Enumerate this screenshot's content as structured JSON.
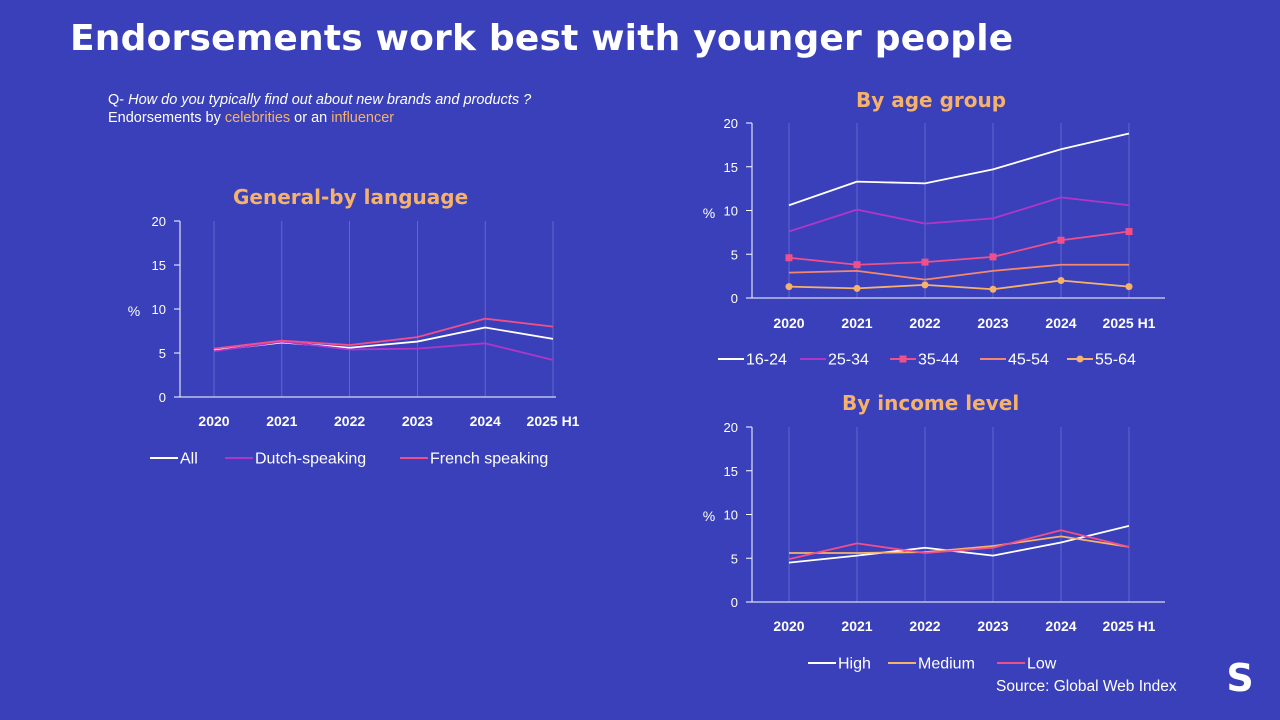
{
  "header": {
    "title": "Endorsements work best with younger people"
  },
  "question": {
    "prefix": "Q- ",
    "text": "How do you typically find out about new brands and products ?",
    "line2_start": "Endorsements by ",
    "highlight1": "celebrities",
    "middle": " or an ",
    "highlight2": "influencer"
  },
  "footer": {
    "source": "Source: Global Web Index",
    "logo_letter": "S"
  },
  "colors": {
    "background": "#3a40b9",
    "accent": "#f6b26b",
    "white": "#ffffff",
    "purple": "#b036c8",
    "pink": "#ef4f8a",
    "salmon": "#f4876c",
    "orange": "#f6b26b"
  },
  "chart_data": [
    {
      "id": "language",
      "type": "line",
      "title": "General-by language",
      "ylabel": "%",
      "ylim": [
        0,
        20
      ],
      "yticks": [
        0,
        5,
        10,
        15,
        20
      ],
      "categories": [
        "2020",
        "2021",
        "2022",
        "2023",
        "2024",
        "2025 H1"
      ],
      "series": [
        {
          "name": "All",
          "color": "#ffffff",
          "marker": "none",
          "values": [
            5.3,
            6.2,
            5.6,
            6.3,
            7.9,
            6.6
          ]
        },
        {
          "name": "Dutch-speaking",
          "color": "#b036c8",
          "marker": "none",
          "values": [
            5.2,
            6.3,
            5.4,
            5.5,
            6.1,
            4.2
          ]
        },
        {
          "name": "French speaking",
          "color": "#ef4f8a",
          "marker": "none",
          "values": [
            5.5,
            6.4,
            5.9,
            6.8,
            8.9,
            8.0
          ]
        }
      ]
    },
    {
      "id": "age",
      "type": "line",
      "title": "By age group",
      "ylabel": "%",
      "ylim": [
        0,
        20
      ],
      "yticks": [
        0,
        5,
        10,
        15,
        20
      ],
      "categories": [
        "2020",
        "2021",
        "2022",
        "2023",
        "2024",
        "2025 H1"
      ],
      "series": [
        {
          "name": "16-24",
          "color": "#ffffff",
          "marker": "none",
          "values": [
            10.6,
            13.3,
            13.1,
            14.7,
            17.0,
            18.8
          ]
        },
        {
          "name": "25-34",
          "color": "#b036c8",
          "marker": "none",
          "values": [
            7.6,
            10.1,
            8.5,
            9.1,
            11.5,
            10.6
          ]
        },
        {
          "name": "35-44",
          "color": "#ef4f8a",
          "marker": "square",
          "values": [
            4.6,
            3.8,
            4.1,
            4.7,
            6.6,
            7.6
          ]
        },
        {
          "name": "45-54",
          "color": "#f4876c",
          "marker": "none",
          "values": [
            2.9,
            3.1,
            2.1,
            3.1,
            3.8,
            3.8
          ]
        },
        {
          "name": "55-64",
          "color": "#f6b26b",
          "marker": "circle",
          "values": [
            1.3,
            1.1,
            1.5,
            1.0,
            2.0,
            1.3
          ]
        }
      ]
    },
    {
      "id": "income",
      "type": "line",
      "title": "By income level",
      "ylabel": "%",
      "ylim": [
        0,
        20
      ],
      "yticks": [
        0,
        5,
        10,
        15,
        20
      ],
      "categories": [
        "2020",
        "2021",
        "2022",
        "2023",
        "2024",
        "2025 H1"
      ],
      "series": [
        {
          "name": "High",
          "color": "#ffffff",
          "marker": "none",
          "values": [
            4.5,
            5.3,
            6.2,
            5.3,
            6.8,
            8.7
          ]
        },
        {
          "name": "Medium",
          "color": "#f6b26b",
          "marker": "none",
          "values": [
            5.6,
            5.6,
            5.7,
            6.4,
            7.5,
            6.3
          ]
        },
        {
          "name": "Low",
          "color": "#ef4f8a",
          "marker": "none",
          "values": [
            4.9,
            6.7,
            5.6,
            6.2,
            8.2,
            6.3
          ]
        }
      ]
    }
  ]
}
